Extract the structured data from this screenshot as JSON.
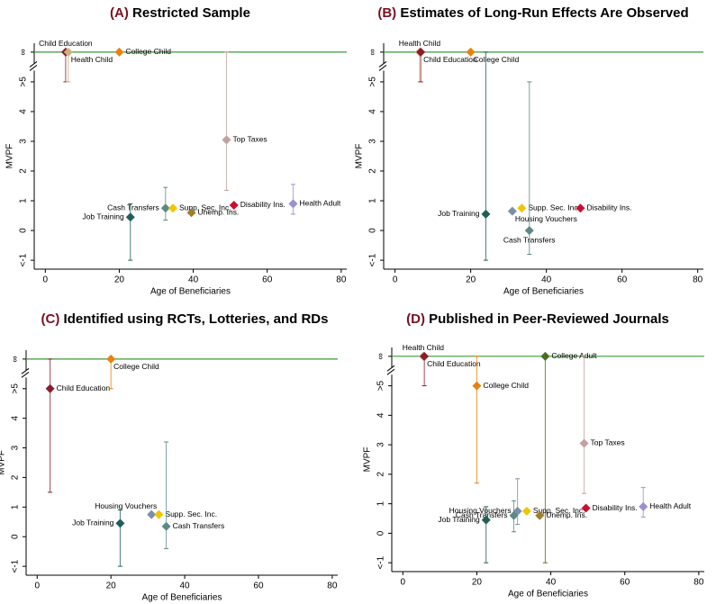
{
  "chart_data": [
    {
      "type": "scatter",
      "panel": "(A)",
      "title": "Restricted Sample",
      "x_label": "Age of Beneficiaries",
      "y_label": "MVPF",
      "xlim": [
        -3,
        81.5
      ],
      "ylim": [
        -1.3,
        6.3
      ],
      "xticks": [
        0,
        20,
        40,
        60,
        80
      ],
      "yticks": [
        {
          "value": -1,
          "label": "<-1"
        },
        0,
        1,
        2,
        3,
        4,
        {
          "value": 5,
          "label": ">5"
        },
        {
          "value": 6,
          "label": "∞"
        }
      ],
      "reference_line": {
        "value": 6,
        "color": "#3a9a3a"
      },
      "series": [
        {
          "name": "Child Education",
          "color": "#8b1c2c",
          "x": [
            5.5
          ],
          "values": [
            6
          ],
          "error_low": [
            5
          ],
          "error_high": [
            6
          ]
        },
        {
          "name": "Health Child",
          "color": "#c9b27c",
          "x": [
            6.2
          ],
          "values": [
            6
          ],
          "error_low": [
            5
          ],
          "error_high": [
            6
          ]
        },
        {
          "name": "College Child",
          "color": "#e8820c",
          "x": [
            20
          ],
          "values": [
            6
          ],
          "error_low": [
            null
          ],
          "error_high": [
            null
          ]
        },
        {
          "name": "Top Taxes",
          "color": "#c4a0a0",
          "x": [
            49
          ],
          "values": [
            3.05
          ],
          "error_low": [
            1.35
          ],
          "error_high": [
            6
          ]
        },
        {
          "name": "Disability Ins.",
          "color": "#c8102e",
          "x": [
            51
          ],
          "values": [
            0.85
          ],
          "error_low": [
            null
          ],
          "error_high": [
            null
          ]
        },
        {
          "name": "Health Adult",
          "color": "#9b8fd3",
          "x": [
            67
          ],
          "values": [
            0.9
          ],
          "error_low": [
            0.55
          ],
          "error_high": [
            1.55
          ]
        },
        {
          "name": "Cash Transfers",
          "color": "#5d8a89",
          "x": [
            32.5
          ],
          "values": [
            0.75
          ],
          "error_low": [
            0.35
          ],
          "error_high": [
            1.45
          ]
        },
        {
          "name": "Supp. Sec. Inc.",
          "color": "#f2c500",
          "x": [
            34.5
          ],
          "values": [
            0.75
          ],
          "error_low": [
            null
          ],
          "error_high": [
            null
          ]
        },
        {
          "name": "Unemp. Ins.",
          "color": "#9c7f2a",
          "x": [
            39.5
          ],
          "values": [
            0.6
          ],
          "error_low": [
            null
          ],
          "error_high": [
            null
          ]
        },
        {
          "name": "Job Training",
          "color": "#1f5e5b",
          "x": [
            23
          ],
          "values": [
            0.45
          ],
          "error_low": [
            -1
          ],
          "error_high": [
            0.9
          ]
        }
      ]
    },
    {
      "type": "scatter",
      "panel": "(B)",
      "title": "Estimates of Long-Run Effects Are Observed",
      "x_label": "Age of Beneficiaries",
      "y_label": "MVPF",
      "xlim": [
        -3,
        81.5
      ],
      "ylim": [
        -1.3,
        6.3
      ],
      "xticks": [
        0,
        20,
        40,
        60,
        80
      ],
      "yticks": [
        {
          "value": -1,
          "label": "<-1"
        },
        0,
        1,
        2,
        3,
        4,
        {
          "value": 5,
          "label": ">5"
        },
        {
          "value": 6,
          "label": "∞"
        }
      ],
      "reference_line": {
        "value": 6,
        "color": "#3a9a3a"
      },
      "series": [
        {
          "name": "Health Child",
          "color": "#c9b27c",
          "x": [
            6.5
          ],
          "values": [
            6
          ],
          "error_low": [
            5
          ],
          "error_high": [
            6
          ]
        },
        {
          "name": "Child Education",
          "color": "#8b1c2c",
          "x": [
            6.8
          ],
          "values": [
            6
          ],
          "error_low": [
            5
          ],
          "error_high": [
            6
          ]
        },
        {
          "name": "College Child",
          "color": "#e8820c",
          "x": [
            20
          ],
          "values": [
            6
          ],
          "error_low": [
            null
          ],
          "error_high": [
            null
          ]
        },
        {
          "name": "Job Training",
          "color": "#1f5e5b",
          "x": [
            24
          ],
          "values": [
            0.55
          ],
          "error_low": [
            -1
          ],
          "error_high": [
            6
          ]
        },
        {
          "name": "Housing Vouchers",
          "color": "#7b8fa8",
          "x": [
            31
          ],
          "values": [
            0.65
          ],
          "error_low": [
            null
          ],
          "error_high": [
            null
          ]
        },
        {
          "name": "Supp. Sec. Inc.",
          "color": "#f2c500",
          "x": [
            33.5
          ],
          "values": [
            0.75
          ],
          "error_low": [
            null
          ],
          "error_high": [
            null
          ]
        },
        {
          "name": "Disability Ins.",
          "color": "#c8102e",
          "x": [
            49
          ],
          "values": [
            0.75
          ],
          "error_low": [
            null
          ],
          "error_high": [
            null
          ]
        },
        {
          "name": "Cash Transfers",
          "color": "#5d8a89",
          "x": [
            35.5
          ],
          "values": [
            0
          ],
          "error_low": [
            -0.8
          ],
          "error_high": [
            5
          ]
        }
      ]
    },
    {
      "type": "scatter",
      "panel": "(C)",
      "title": "Identified using RCTs, Lotteries, and RDs",
      "x_label": "Age of Beneficiaries",
      "y_label": "MVPF",
      "xlim": [
        -3,
        81.5
      ],
      "ylim": [
        -1.3,
        6.3
      ],
      "xticks": [
        0,
        20,
        40,
        60,
        80
      ],
      "yticks": [
        {
          "value": -1,
          "label": "<-1"
        },
        0,
        1,
        2,
        3,
        4,
        {
          "value": 5,
          "label": ">5"
        },
        {
          "value": 6,
          "label": "∞"
        }
      ],
      "reference_line": {
        "value": 6,
        "color": "#3a9a3a"
      },
      "series": [
        {
          "name": "Child Education",
          "color": "#8b1c2c",
          "x": [
            3.5
          ],
          "values": [
            5
          ],
          "error_low": [
            1.5
          ],
          "error_high": [
            6
          ]
        },
        {
          "name": "College Child",
          "color": "#e8820c",
          "x": [
            20
          ],
          "values": [
            6
          ],
          "error_low": [
            5
          ],
          "error_high": [
            6
          ]
        },
        {
          "name": "Housing Vouchers",
          "color": "#7b8fa8",
          "x": [
            31
          ],
          "values": [
            0.75
          ],
          "error_low": [
            null
          ],
          "error_high": [
            null
          ]
        },
        {
          "name": "Supp. Sec. Inc.",
          "color": "#f2c500",
          "x": [
            33
          ],
          "values": [
            0.75
          ],
          "error_low": [
            null
          ],
          "error_high": [
            null
          ]
        },
        {
          "name": "Job Training",
          "color": "#1f5e5b",
          "x": [
            22.5
          ],
          "values": [
            0.45
          ],
          "error_low": [
            -1
          ],
          "error_high": [
            0.9
          ]
        },
        {
          "name": "Cash Transfers",
          "color": "#5d8a89",
          "x": [
            35
          ],
          "values": [
            0.35
          ],
          "error_low": [
            -0.4
          ],
          "error_high": [
            3.2
          ]
        }
      ]
    },
    {
      "type": "scatter",
      "panel": "(D)",
      "title": "Published in Peer-Reviewed Journals",
      "x_label": "Age of Beneficiaries",
      "y_label": "MVPF",
      "xlim": [
        -3,
        81.5
      ],
      "ylim": [
        -1.3,
        6.3
      ],
      "xticks": [
        0,
        20,
        40,
        60,
        80
      ],
      "yticks": [
        {
          "value": -1,
          "label": "<-1"
        },
        0,
        1,
        2,
        3,
        4,
        {
          "value": 5,
          "label": ">5"
        },
        {
          "value": 6,
          "label": "∞"
        }
      ],
      "reference_line": {
        "value": 6,
        "color": "#3a9a3a"
      },
      "series": [
        {
          "name": "Health Child",
          "color": "#c9b27c",
          "x": [
            5.5
          ],
          "values": [
            6
          ],
          "error_low": [
            null
          ],
          "error_high": [
            null
          ]
        },
        {
          "name": "Child Education",
          "color": "#8b1c2c",
          "x": [
            5.8
          ],
          "values": [
            6
          ],
          "error_low": [
            5
          ],
          "error_high": [
            6
          ]
        },
        {
          "name": "College Adult",
          "color": "#4c6b1f",
          "x": [
            38.5
          ],
          "values": [
            6
          ],
          "error_low": [
            -1
          ],
          "error_high": [
            6
          ]
        },
        {
          "name": "College Child",
          "color": "#e8820c",
          "x": [
            20
          ],
          "values": [
            5
          ],
          "error_low": [
            1.7
          ],
          "error_high": [
            6
          ]
        },
        {
          "name": "Top Taxes",
          "color": "#c4a0a0",
          "x": [
            49
          ],
          "values": [
            3.05
          ],
          "error_low": [
            1.35
          ],
          "error_high": [
            6
          ]
        },
        {
          "name": "Housing Vouchers",
          "color": "#7b8fa8",
          "x": [
            31
          ],
          "values": [
            0.75
          ],
          "error_low": [
            0.3
          ],
          "error_high": [
            1.85
          ]
        },
        {
          "name": "Cash Transfers",
          "color": "#5d8a89",
          "x": [
            30
          ],
          "values": [
            0.6
          ],
          "error_low": [
            0.05
          ],
          "error_high": [
            1.1
          ]
        },
        {
          "name": "Supp. Sec. Inc.",
          "color": "#f2c500",
          "x": [
            33.5
          ],
          "values": [
            0.75
          ],
          "error_low": [
            null
          ],
          "error_high": [
            null
          ]
        },
        {
          "name": "Unemp. Ins.",
          "color": "#9c7f2a",
          "x": [
            37
          ],
          "values": [
            0.6
          ],
          "error_low": [
            null
          ],
          "error_high": [
            null
          ]
        },
        {
          "name": "Job Training",
          "color": "#1f5e5b",
          "x": [
            22.5
          ],
          "values": [
            0.45
          ],
          "error_low": [
            -1
          ],
          "error_high": [
            0.9
          ]
        },
        {
          "name": "Disability Ins.",
          "color": "#c8102e",
          "x": [
            49.5
          ],
          "values": [
            0.85
          ],
          "error_low": [
            null
          ],
          "error_high": [
            null
          ]
        },
        {
          "name": "Health Adult",
          "color": "#9b8fd3",
          "x": [
            65
          ],
          "values": [
            0.9
          ],
          "error_low": [
            0.55
          ],
          "error_high": [
            1.55
          ]
        }
      ]
    }
  ]
}
